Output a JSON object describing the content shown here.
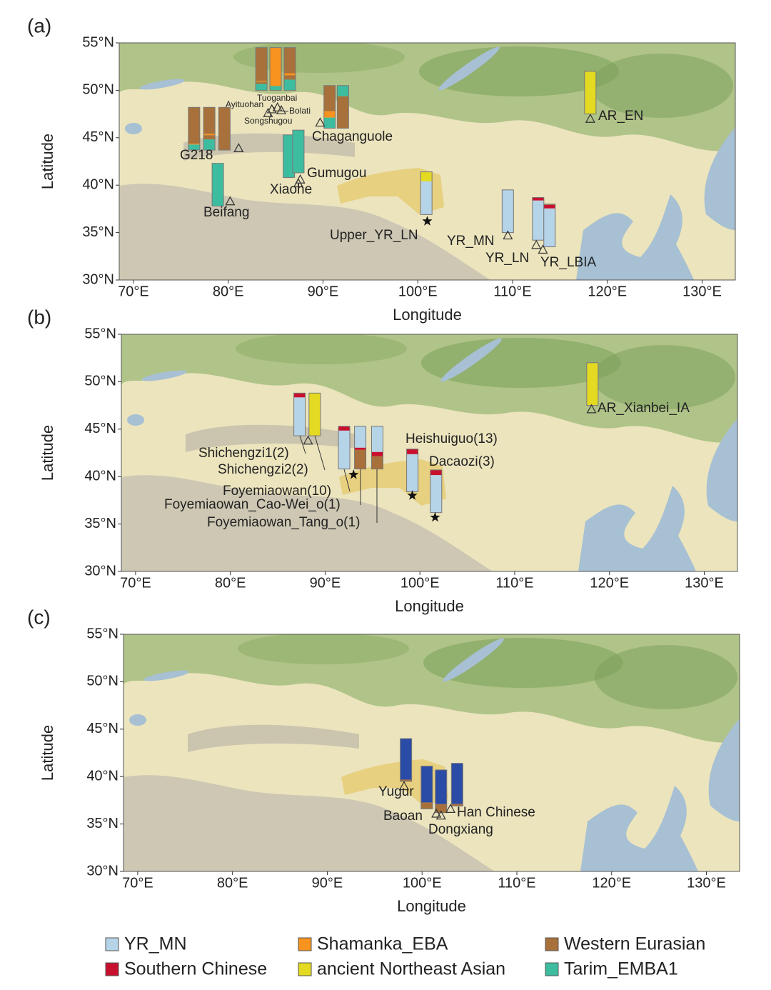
{
  "chart_data": [
    {
      "type": "map",
      "panel_label": "(a)",
      "xlabel": "Longitude",
      "ylabel": "Latitude",
      "xlim": [
        68.5,
        133.5
      ],
      "ylim": [
        30,
        55
      ],
      "xticks": [
        {
          "value": 70,
          "label": "70°E"
        },
        {
          "value": 80,
          "label": "80°E"
        },
        {
          "value": 90,
          "label": "90°E"
        },
        {
          "value": 100,
          "label": "100°E"
        },
        {
          "value": 110,
          "label": "110°E"
        },
        {
          "value": 120,
          "label": "120°E"
        },
        {
          "value": 130,
          "label": "130°E"
        }
      ],
      "yticks": [
        {
          "value": 30,
          "label": "30°N"
        },
        {
          "value": 35,
          "label": "35°N"
        },
        {
          "value": 40,
          "label": "40°N"
        },
        {
          "value": 45,
          "label": "45°N"
        },
        {
          "value": 50,
          "label": "50°N"
        },
        {
          "value": 55,
          "label": "55°N"
        }
      ],
      "bars": [
        {
          "lon": 76.4,
          "lat": 43.7,
          "segments": [
            {
              "color": "#3dbd9f",
              "value": 0.13
            },
            {
              "color": "#f7931e",
              "value": 0.02
            },
            {
              "color": "#a8713b",
              "value": 0.85
            }
          ]
        },
        {
          "lon": 78.0,
          "lat": 43.7,
          "segments": [
            {
              "color": "#3dbd9f",
              "value": 0.25
            },
            {
              "color": "#a8713b",
              "value": 0.1
            },
            {
              "color": "#f7931e",
              "value": 0.03
            },
            {
              "color": "#a8713b",
              "value": 0.62
            }
          ]
        },
        {
          "lon": 79.6,
          "lat": 43.7,
          "segments": [
            {
              "color": "#a8713b",
              "value": 1
            }
          ]
        },
        {
          "lon": 83.5,
          "lat": 50.0,
          "segments": [
            {
              "color": "#3dbd9f",
              "value": 0.15
            },
            {
              "color": "#a8713b",
              "value": 0.05
            },
            {
              "color": "#f7931e",
              "value": 0.02
            },
            {
              "color": "#a8713b",
              "value": 0.78
            }
          ]
        },
        {
          "lon": 85.0,
          "lat": 50.0,
          "segments": [
            {
              "color": "#3dbd9f",
              "value": 0.1
            },
            {
              "color": "#f7931e",
              "value": 0.9
            }
          ]
        },
        {
          "lon": 86.5,
          "lat": 50.0,
          "segments": [
            {
              "color": "#3dbd9f",
              "value": 0.25
            },
            {
              "color": "#a8713b",
              "value": 0.1
            },
            {
              "color": "#f7931e",
              "value": 0.05
            },
            {
              "color": "#a8713b",
              "value": 0.6
            }
          ]
        },
        {
          "lon": 90.7,
          "lat": 46.0,
          "segments": [
            {
              "color": "#3dbd9f",
              "value": 0.25
            },
            {
              "color": "#f7931e",
              "value": 0.15
            },
            {
              "color": "#a8713b",
              "value": 0.6
            }
          ]
        },
        {
          "lon": 92.1,
          "lat": 46.0,
          "segments": [
            {
              "color": "#a8713b",
              "value": 0.75
            },
            {
              "color": "#3dbd9f",
              "value": 0.25
            }
          ]
        },
        {
          "lon": 86.4,
          "lat": 40.8,
          "segments": [
            {
              "color": "#3dbd9f",
              "value": 1
            }
          ]
        },
        {
          "lon": 87.4,
          "lat": 41.3,
          "segments": [
            {
              "color": "#3dbd9f",
              "value": 1
            }
          ]
        },
        {
          "lon": 78.9,
          "lat": 37.8,
          "segments": [
            {
              "color": "#3dbd9f",
              "value": 1
            }
          ]
        },
        {
          "lon": 100.9,
          "lat": 36.9,
          "segments": [
            {
              "color": "#b6d4e7",
              "value": 0.78
            },
            {
              "color": "#e3da21",
              "value": 0.22
            }
          ]
        },
        {
          "lon": 109.5,
          "lat": 35.0,
          "segments": [
            {
              "color": "#b6d4e7",
              "value": 1
            }
          ]
        },
        {
          "lon": 112.7,
          "lat": 34.2,
          "segments": [
            {
              "color": "#b6d4e7",
              "value": 0.93
            },
            {
              "color": "#c8102e",
              "value": 0.07
            }
          ]
        },
        {
          "lon": 113.9,
          "lat": 33.5,
          "segments": [
            {
              "color": "#b6d4e7",
              "value": 0.9
            },
            {
              "color": "#c8102e",
              "value": 0.08
            },
            {
              "color": "#a8713b",
              "value": 0.02
            }
          ]
        },
        {
          "lon": 118.2,
          "lat": 47.5,
          "segments": [
            {
              "color": "#e3da21",
              "value": 1
            }
          ]
        }
      ],
      "markers": [
        {
          "lon": 81.1,
          "lat": 43.9,
          "shape": "triangle"
        },
        {
          "lon": 84.6,
          "lat": 48.0,
          "shape": "triangle"
        },
        {
          "lon": 85.2,
          "lat": 48.2,
          "shape": "triangle"
        },
        {
          "lon": 85.6,
          "lat": 47.9,
          "shape": "triangle"
        },
        {
          "lon": 84.2,
          "lat": 47.6,
          "shape": "triangle"
        },
        {
          "lon": 89.7,
          "lat": 46.6,
          "shape": "triangle"
        },
        {
          "lon": 87.6,
          "lat": 40.6,
          "shape": "triangle"
        },
        {
          "lon": 87.4,
          "lat": 40.2,
          "shape": "triangle"
        },
        {
          "lon": 80.2,
          "lat": 38.3,
          "shape": "triangle"
        },
        {
          "lon": 101.0,
          "lat": 36.2,
          "shape": "star"
        },
        {
          "lon": 109.5,
          "lat": 34.7,
          "shape": "triangle"
        },
        {
          "lon": 112.5,
          "lat": 33.7,
          "shape": "triangle"
        },
        {
          "lon": 113.2,
          "lat": 33.2,
          "shape": "triangle"
        },
        {
          "lon": 118.2,
          "lat": 47.0,
          "shape": "triangle"
        }
      ],
      "site_labels": [
        "G218",
        "Ayituohan",
        "Tuoganbai",
        "Bolati",
        "Songshugou",
        "Chaganguole",
        "Gumugou",
        "Xiaohe",
        "Beifang",
        "Upper_YR_LN",
        "YR_MN",
        "YR_LN",
        "YR_LBIA",
        "AR_EN"
      ]
    },
    {
      "type": "map",
      "panel_label": "(b)",
      "xlabel": "Longitude",
      "ylabel": "Latitude",
      "xlim": [
        68.5,
        133.5
      ],
      "ylim": [
        30,
        55
      ],
      "xticks": [
        {
          "value": 70,
          "label": "70°E"
        },
        {
          "value": 80,
          "label": "80°E"
        },
        {
          "value": 90,
          "label": "90°E"
        },
        {
          "value": 100,
          "label": "100°E"
        },
        {
          "value": 110,
          "label": "110°E"
        },
        {
          "value": 120,
          "label": "120°E"
        },
        {
          "value": 130,
          "label": "130°E"
        }
      ],
      "yticks": [
        {
          "value": 30,
          "label": "30°N"
        },
        {
          "value": 35,
          "label": "35°N"
        },
        {
          "value": 40,
          "label": "40°N"
        },
        {
          "value": 45,
          "label": "45°N"
        },
        {
          "value": 50,
          "label": "50°N"
        },
        {
          "value": 55,
          "label": "55°N"
        }
      ],
      "bars": [
        {
          "lon": 87.3,
          "lat": 44.3,
          "segments": [
            {
              "color": "#b6d4e7",
              "value": 0.9
            },
            {
              "color": "#c8102e",
              "value": 0.1
            }
          ]
        },
        {
          "lon": 88.9,
          "lat": 44.3,
          "segments": [
            {
              "color": "#e3da21",
              "value": 1
            }
          ]
        },
        {
          "lon": 92.0,
          "lat": 40.8,
          "segments": [
            {
              "color": "#b6d4e7",
              "value": 0.9
            },
            {
              "color": "#c8102e",
              "value": 0.1
            }
          ]
        },
        {
          "lon": 93.7,
          "lat": 40.8,
          "segments": [
            {
              "color": "#a8713b",
              "value": 0.45
            },
            {
              "color": "#c8102e",
              "value": 0.05
            },
            {
              "color": "#b6d4e7",
              "value": 0.5
            }
          ]
        },
        {
          "lon": 95.5,
          "lat": 40.8,
          "segments": [
            {
              "color": "#a8713b",
              "value": 0.3
            },
            {
              "color": "#c8102e",
              "value": 0.1
            },
            {
              "color": "#b6d4e7",
              "value": 0.6
            }
          ]
        },
        {
          "lon": 99.2,
          "lat": 38.4,
          "segments": [
            {
              "color": "#b6d4e7",
              "value": 0.88
            },
            {
              "color": "#c8102e",
              "value": 0.12
            }
          ]
        },
        {
          "lon": 101.7,
          "lat": 36.2,
          "segments": [
            {
              "color": "#b6d4e7",
              "value": 0.88
            },
            {
              "color": "#c8102e",
              "value": 0.12
            }
          ]
        },
        {
          "lon": 118.2,
          "lat": 47.5,
          "segments": [
            {
              "color": "#e3da21",
              "value": 1
            }
          ]
        }
      ],
      "markers": [
        {
          "lon": 88.2,
          "lat": 43.8,
          "shape": "triangle"
        },
        {
          "lon": 93.0,
          "lat": 40.2,
          "shape": "star"
        },
        {
          "lon": 99.2,
          "lat": 38.0,
          "shape": "star"
        },
        {
          "lon": 101.6,
          "lat": 35.7,
          "shape": "star"
        },
        {
          "lon": 118.1,
          "lat": 47.1,
          "shape": "triangle"
        }
      ],
      "site_labels": [
        "Shichengzi1(2)",
        "Shichengzi2(2)",
        "Foyemiaowan(10)",
        "Foyemiaowan_Cao-Wei_o(1)",
        "Foyemiaowan_Tang_o(1)",
        "Heishuiguo(13)",
        "Dacaozi(3)",
        "AR_Xianbei_IA"
      ]
    },
    {
      "type": "map",
      "panel_label": "(c)",
      "xlabel": "Longitude",
      "ylabel": "Latitude",
      "xlim": [
        68.5,
        133.5
      ],
      "ylim": [
        30,
        55
      ],
      "xticks": [
        {
          "value": 70,
          "label": "70°E"
        },
        {
          "value": 80,
          "label": "80°E"
        },
        {
          "value": 90,
          "label": "90°E"
        },
        {
          "value": 100,
          "label": "100°E"
        },
        {
          "value": 110,
          "label": "110°E"
        },
        {
          "value": 120,
          "label": "120°E"
        },
        {
          "value": 130,
          "label": "130°E"
        }
      ],
      "yticks": [
        {
          "value": 30,
          "label": "30°N"
        },
        {
          "value": 35,
          "label": "35°N"
        },
        {
          "value": 40,
          "label": "40°N"
        },
        {
          "value": 45,
          "label": "45°N"
        },
        {
          "value": 50,
          "label": "50°N"
        },
        {
          "value": 55,
          "label": "55°N"
        }
      ],
      "bars": [
        {
          "lon": 98.3,
          "lat": 39.5,
          "segments": [
            {
              "color": "#a8713b",
              "value": 0.04
            },
            {
              "color": "#2a4ba6",
              "value": 0.96
            }
          ]
        },
        {
          "lon": 100.5,
          "lat": 36.6,
          "segments": [
            {
              "color": "#a8713b",
              "value": 0.15
            },
            {
              "color": "#2a4ba6",
              "value": 0.85
            }
          ]
        },
        {
          "lon": 102.0,
          "lat": 36.2,
          "segments": [
            {
              "color": "#a8713b",
              "value": 0.2
            },
            {
              "color": "#2a4ba6",
              "value": 0.8
            }
          ]
        },
        {
          "lon": 103.7,
          "lat": 36.9,
          "segments": [
            {
              "color": "#a8713b",
              "value": 0.05
            },
            {
              "color": "#2a4ba6",
              "value": 0.95
            }
          ]
        }
      ],
      "markers": [
        {
          "lon": 98.1,
          "lat": 39.0,
          "shape": "triangle"
        },
        {
          "lon": 101.5,
          "lat": 36.1,
          "shape": "triangle"
        },
        {
          "lon": 102.0,
          "lat": 35.9,
          "shape": "triangle"
        },
        {
          "lon": 103.0,
          "lat": 36.6,
          "shape": "triangle"
        }
      ],
      "site_labels": [
        "Yugur",
        "Baoan",
        "Dongxiang",
        "Han Chinese"
      ]
    }
  ],
  "legend": [
    {
      "name": "YR_MN",
      "color": "#b6d4e7"
    },
    {
      "name": "Shamanka_EBA",
      "color": "#f7931e"
    },
    {
      "name": "Western Eurasian",
      "color": "#a8713b"
    },
    {
      "name": "Southern Chinese",
      "color": "#c8102e"
    },
    {
      "name": "ancient Northeast Asian",
      "color": "#e3da21"
    },
    {
      "name": "Tarim_EMBA1",
      "color": "#3dbd9f"
    }
  ]
}
